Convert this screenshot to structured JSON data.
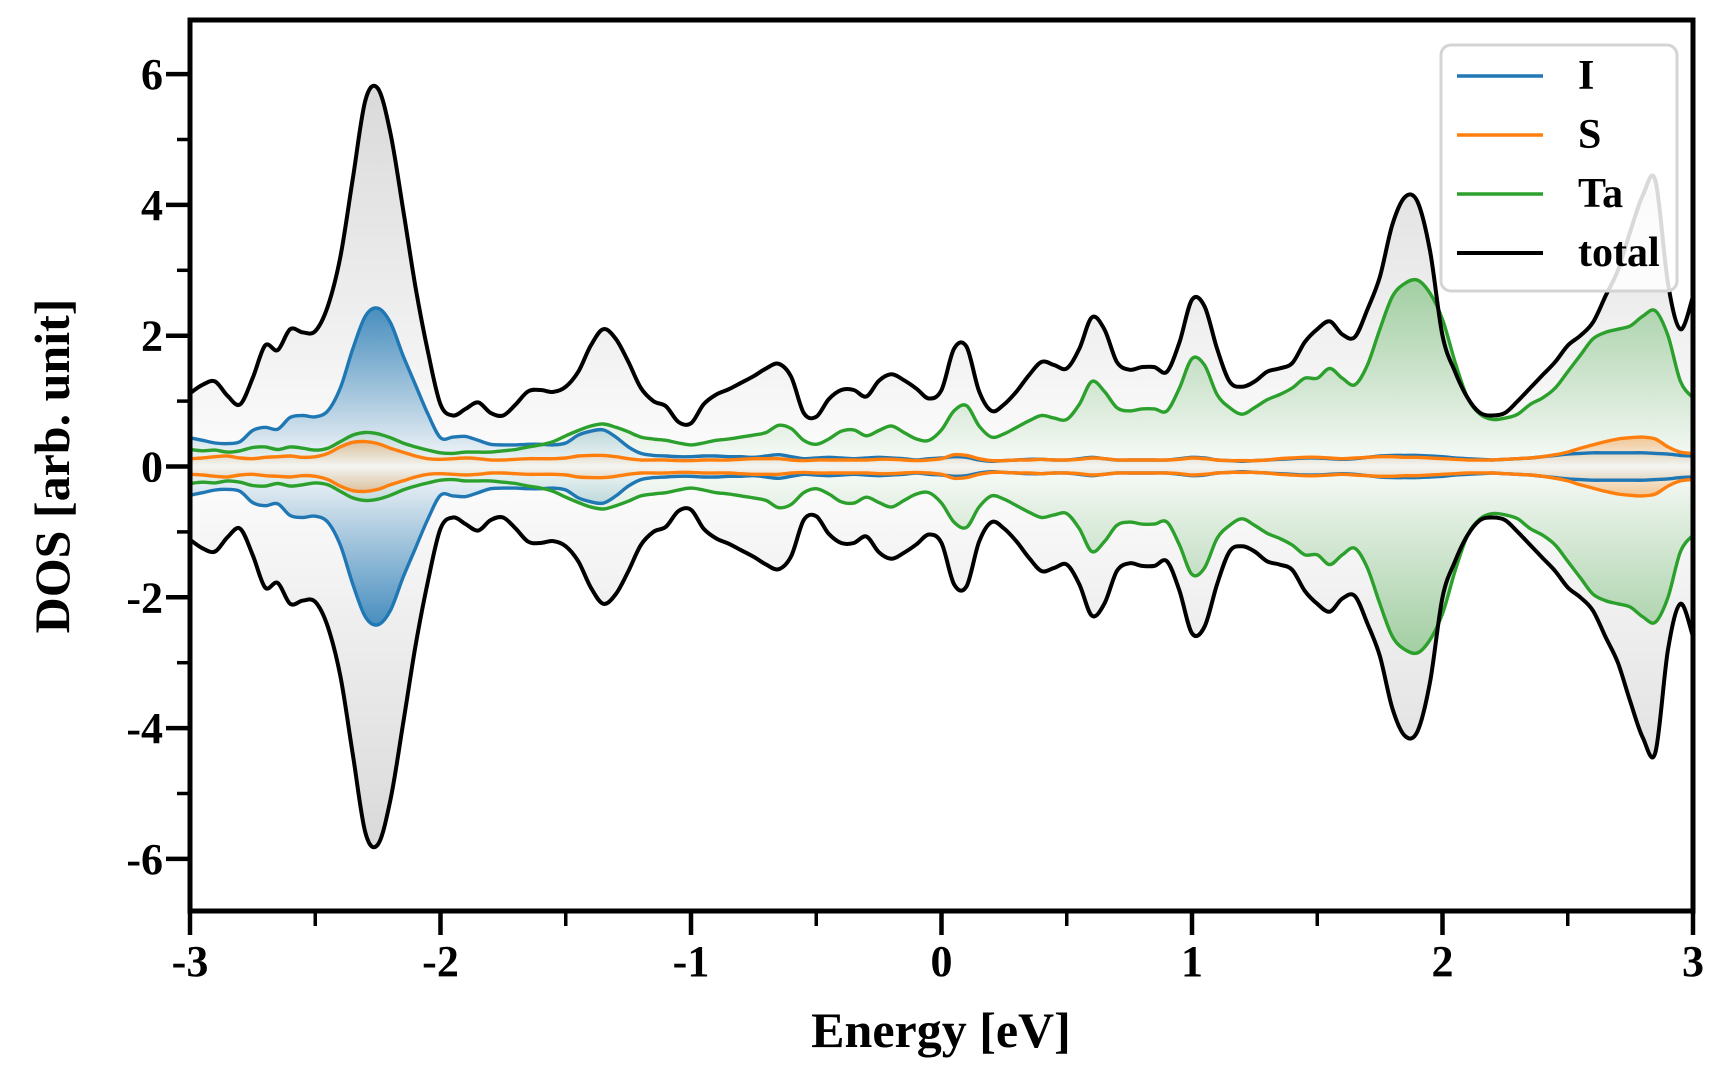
{
  "figure": {
    "xlabel": "Energy [eV]",
    "ylabel": "DOS [arb. unit]"
  },
  "chart_data": {
    "type": "area",
    "title": "",
    "xlabel": "Energy [eV]",
    "ylabel": "DOS [arb. unit]",
    "xlim": [
      -3,
      3
    ],
    "ylim": [
      -6.8,
      6.8
    ],
    "x_ticks_major": [
      -3,
      -2,
      -1,
      0,
      1,
      2,
      3
    ],
    "x_ticks_minor": [
      -2.5,
      -1.5,
      -0.5,
      0.5,
      1.5,
      2.5
    ],
    "y_ticks_major": [
      -6,
      -4,
      -2,
      0,
      2,
      4,
      6
    ],
    "y_ticks_minor": [
      -5,
      -3,
      -1,
      1,
      3,
      5
    ],
    "grid": false,
    "mirrored_about_zero": true,
    "legend": {
      "position": "top-right",
      "entries": [
        "I",
        "S",
        "Ta",
        "total"
      ]
    },
    "x_grid": {
      "start": -3,
      "step": 0.05,
      "count": 121
    },
    "series": [
      {
        "name": "I",
        "color": "#1f77b4",
        "values": [
          0.44,
          0.4,
          0.36,
          0.35,
          0.38,
          0.55,
          0.6,
          0.57,
          0.75,
          0.78,
          0.76,
          0.85,
          1.2,
          1.8,
          2.3,
          2.42,
          2.2,
          1.7,
          1.25,
          0.8,
          0.44,
          0.45,
          0.46,
          0.4,
          0.34,
          0.33,
          0.33,
          0.34,
          0.34,
          0.33,
          0.36,
          0.48,
          0.54,
          0.56,
          0.45,
          0.3,
          0.2,
          0.17,
          0.16,
          0.15,
          0.15,
          0.16,
          0.16,
          0.15,
          0.15,
          0.14,
          0.16,
          0.18,
          0.15,
          0.12,
          0.13,
          0.14,
          0.13,
          0.12,
          0.13,
          0.14,
          0.13,
          0.12,
          0.1,
          0.12,
          0.13,
          0.15,
          0.14,
          0.1,
          0.08,
          0.09,
          0.1,
          0.11,
          0.11,
          0.1,
          0.1,
          0.12,
          0.14,
          0.12,
          0.1,
          0.1,
          0.1,
          0.1,
          0.1,
          0.12,
          0.14,
          0.13,
          0.1,
          0.09,
          0.08,
          0.09,
          0.1,
          0.11,
          0.12,
          0.13,
          0.13,
          0.12,
          0.11,
          0.12,
          0.14,
          0.16,
          0.17,
          0.17,
          0.17,
          0.16,
          0.15,
          0.13,
          0.12,
          0.11,
          0.1,
          0.11,
          0.12,
          0.13,
          0.15,
          0.17,
          0.19,
          0.2,
          0.21,
          0.21,
          0.21,
          0.21,
          0.21,
          0.2,
          0.19,
          0.17,
          0.16
        ]
      },
      {
        "name": "S",
        "color": "#ff7f0e",
        "values": [
          0.12,
          0.13,
          0.15,
          0.16,
          0.13,
          0.12,
          0.14,
          0.15,
          0.16,
          0.14,
          0.15,
          0.2,
          0.3,
          0.37,
          0.38,
          0.35,
          0.28,
          0.22,
          0.16,
          0.12,
          0.11,
          0.12,
          0.13,
          0.12,
          0.1,
          0.1,
          0.11,
          0.12,
          0.12,
          0.12,
          0.13,
          0.16,
          0.17,
          0.17,
          0.15,
          0.12,
          0.1,
          0.1,
          0.1,
          0.09,
          0.09,
          0.1,
          0.1,
          0.1,
          0.11,
          0.12,
          0.12,
          0.12,
          0.1,
          0.09,
          0.1,
          0.1,
          0.1,
          0.1,
          0.1,
          0.11,
          0.11,
          0.1,
          0.09,
          0.1,
          0.12,
          0.18,
          0.17,
          0.12,
          0.09,
          0.09,
          0.1,
          0.1,
          0.11,
          0.1,
          0.1,
          0.11,
          0.13,
          0.12,
          0.1,
          0.1,
          0.1,
          0.1,
          0.1,
          0.11,
          0.13,
          0.12,
          0.1,
          0.09,
          0.09,
          0.09,
          0.1,
          0.12,
          0.13,
          0.14,
          0.14,
          0.13,
          0.12,
          0.13,
          0.14,
          0.15,
          0.15,
          0.14,
          0.14,
          0.13,
          0.12,
          0.11,
          0.1,
          0.1,
          0.1,
          0.11,
          0.12,
          0.13,
          0.15,
          0.18,
          0.22,
          0.28,
          0.33,
          0.38,
          0.42,
          0.44,
          0.45,
          0.42,
          0.3,
          0.22,
          0.2
        ]
      },
      {
        "name": "Ta",
        "color": "#2ca02c",
        "values": [
          0.26,
          0.24,
          0.25,
          0.22,
          0.24,
          0.29,
          0.3,
          0.26,
          0.3,
          0.28,
          0.25,
          0.28,
          0.38,
          0.48,
          0.52,
          0.5,
          0.44,
          0.36,
          0.3,
          0.25,
          0.21,
          0.2,
          0.22,
          0.22,
          0.22,
          0.24,
          0.26,
          0.3,
          0.33,
          0.38,
          0.47,
          0.55,
          0.62,
          0.65,
          0.6,
          0.53,
          0.45,
          0.42,
          0.4,
          0.36,
          0.33,
          0.36,
          0.4,
          0.42,
          0.45,
          0.48,
          0.52,
          0.63,
          0.58,
          0.4,
          0.34,
          0.42,
          0.54,
          0.56,
          0.47,
          0.55,
          0.62,
          0.52,
          0.42,
          0.4,
          0.56,
          0.85,
          0.93,
          0.62,
          0.45,
          0.5,
          0.6,
          0.7,
          0.78,
          0.74,
          0.72,
          0.95,
          1.3,
          1.15,
          0.9,
          0.85,
          0.88,
          0.88,
          0.85,
          1.2,
          1.65,
          1.55,
          1.1,
          0.9,
          0.8,
          0.9,
          1.02,
          1.1,
          1.2,
          1.35,
          1.35,
          1.5,
          1.35,
          1.25,
          1.55,
          2.1,
          2.6,
          2.8,
          2.85,
          2.65,
          2.25,
          1.6,
          1.05,
          0.8,
          0.72,
          0.74,
          0.8,
          0.95,
          1.05,
          1.2,
          1.45,
          1.7,
          1.95,
          2.05,
          2.1,
          2.15,
          2.3,
          2.38,
          2.0,
          1.3,
          1.05
        ]
      },
      {
        "name": "total",
        "color": "#000000",
        "values": [
          1.12,
          1.25,
          1.3,
          1.08,
          0.95,
          1.35,
          1.85,
          1.78,
          2.1,
          2.05,
          2.07,
          2.45,
          3.2,
          4.4,
          5.6,
          5.78,
          5.1,
          3.95,
          2.75,
          1.75,
          0.95,
          0.78,
          0.88,
          0.98,
          0.82,
          0.78,
          0.95,
          1.15,
          1.17,
          1.14,
          1.22,
          1.45,
          1.85,
          2.1,
          1.95,
          1.6,
          1.2,
          1.0,
          0.92,
          0.68,
          0.66,
          0.95,
          1.1,
          1.18,
          1.28,
          1.38,
          1.5,
          1.57,
          1.37,
          0.82,
          0.76,
          1.03,
          1.17,
          1.17,
          1.07,
          1.31,
          1.41,
          1.32,
          1.19,
          1.04,
          1.17,
          1.8,
          1.83,
          1.15,
          0.85,
          0.95,
          1.15,
          1.4,
          1.6,
          1.55,
          1.5,
          1.8,
          2.28,
          2.1,
          1.6,
          1.48,
          1.52,
          1.52,
          1.45,
          1.9,
          2.55,
          2.45,
          1.8,
          1.3,
          1.22,
          1.3,
          1.45,
          1.5,
          1.58,
          1.9,
          2.1,
          2.22,
          2.02,
          1.98,
          2.4,
          2.9,
          3.7,
          4.12,
          4.05,
          3.3,
          2.0,
          1.45,
          1.05,
          0.82,
          0.78,
          0.82,
          1.0,
          1.2,
          1.4,
          1.6,
          1.85,
          2.0,
          2.2,
          2.6,
          3.0,
          3.6,
          4.15,
          4.37,
          2.8,
          2.1,
          2.6
        ]
      }
    ]
  }
}
